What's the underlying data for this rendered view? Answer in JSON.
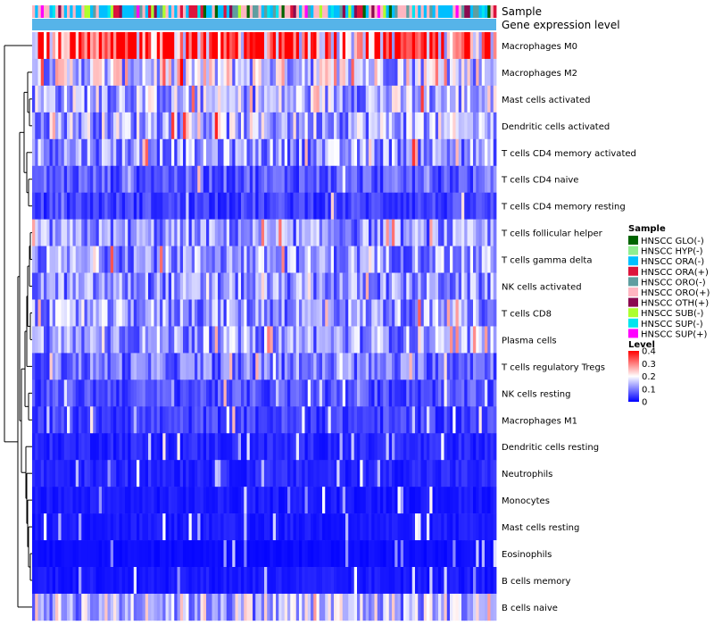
{
  "chart_data": {
    "type": "heatmap",
    "title": "",
    "column_count": 160,
    "annotation_labels": [
      "Sample",
      "Gene expression level"
    ],
    "rows": [
      {
        "label": "Macrophages M0",
        "mean": 0.34
      },
      {
        "label": "Macrophages M2",
        "mean": 0.17
      },
      {
        "label": "Mast cells activated",
        "mean": 0.14
      },
      {
        "label": "Dendritic cells activated",
        "mean": 0.14
      },
      {
        "label": "T cells CD4 memory activated",
        "mean": 0.12
      },
      {
        "label": "T cells CD4 naive",
        "mean": 0.07
      },
      {
        "label": "T cells CD4 memory resting",
        "mean": 0.05
      },
      {
        "label": "T cells follicular helper",
        "mean": 0.11
      },
      {
        "label": "T cells gamma delta",
        "mean": 0.12
      },
      {
        "label": "NK cells activated",
        "mean": 0.11
      },
      {
        "label": "T cells CD8",
        "mean": 0.12
      },
      {
        "label": "Plasma cells",
        "mean": 0.12
      },
      {
        "label": "T cells regulatory  Tregs",
        "mean": 0.09
      },
      {
        "label": "NK cells resting",
        "mean": 0.06
      },
      {
        "label": "Macrophages M1",
        "mean": 0.05
      },
      {
        "label": "Dendritic cells resting",
        "mean": 0.03
      },
      {
        "label": "Neutrophils",
        "mean": 0.03
      },
      {
        "label": "Monocytes",
        "mean": 0.02
      },
      {
        "label": "Mast cells resting",
        "mean": 0.02
      },
      {
        "label": "Eosinophils",
        "mean": 0.01
      },
      {
        "label": "B cells memory",
        "mean": 0.02
      },
      {
        "label": "B cells naive",
        "mean": 0.15
      }
    ],
    "sample_legend": {
      "title": "Sample",
      "items": [
        {
          "label": "HNSCC GLO(-)",
          "color": "#006400"
        },
        {
          "label": "HNSCC HYP(-)",
          "color": "#90ee90"
        },
        {
          "label": "HNSCC ORA(-)",
          "color": "#00bfff"
        },
        {
          "label": "HNSCC ORA(+)",
          "color": "#dc143c"
        },
        {
          "label": "HNSCC ORO(-)",
          "color": "#5f9ea0"
        },
        {
          "label": "HNSCC ORO(+)",
          "color": "#ffb6c1"
        },
        {
          "label": "HNSCC OTH(+)",
          "color": "#8b0a50"
        },
        {
          "label": "HNSCC SUB(-)",
          "color": "#adff2f"
        },
        {
          "label": "HNSCC SUP(-)",
          "color": "#00e5ee"
        },
        {
          "label": "HNSCC SUP(+)",
          "color": "#ff00ff"
        }
      ]
    },
    "level_legend": {
      "title": "Level",
      "ticks": [
        "0.4",
        "0.3",
        "0.2",
        "0.1",
        "0"
      ],
      "tick_values": [
        0.4,
        0.3,
        0.2,
        0.1,
        0
      ],
      "range": [
        0,
        0.4
      ],
      "colors": [
        "#0000ff",
        "#ffffff",
        "#ff0000"
      ]
    },
    "expression_level_color": "#56b4e9"
  }
}
